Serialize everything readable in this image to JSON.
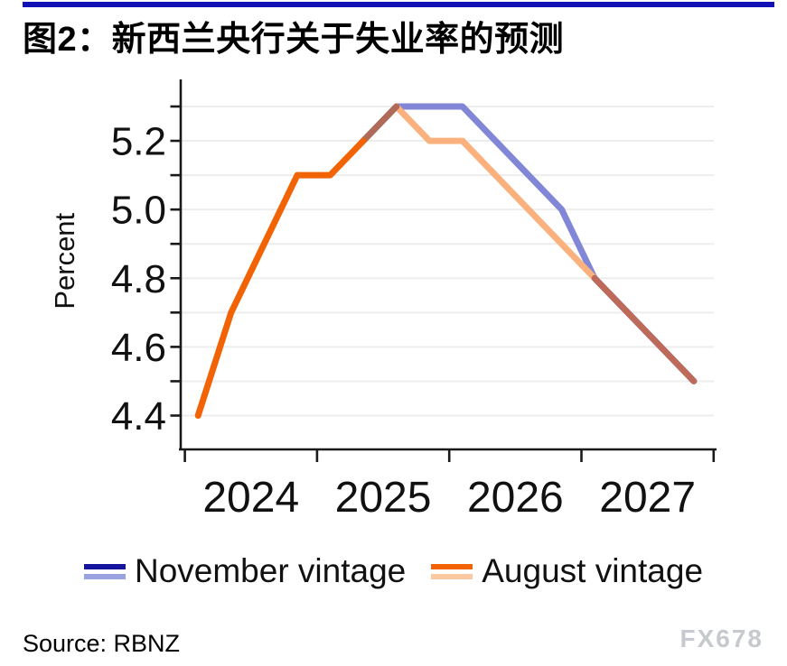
{
  "header": {
    "title": "图2：新西兰央行关于失业率的预测",
    "bar_color": "#1111b5"
  },
  "footer": {
    "source": "Source: RBNZ",
    "watermark": "FX678"
  },
  "legend": {
    "items": [
      {
        "label": "November vintage",
        "key_colors": [
          "#15149e",
          "#9aa2e2"
        ]
      },
      {
        "label": "August vintage",
        "key_colors": [
          "#f16305",
          "#fbc9a0"
        ]
      }
    ]
  },
  "chart_data": {
    "type": "line",
    "title": "图2：新西兰央行关于失业率的预测",
    "xlabel": "",
    "ylabel": "Percent",
    "grid": true,
    "legend_position": "bottom",
    "x_axis": {
      "unit": "quarter",
      "start": "2024Q1",
      "boundaries_q": [
        0,
        4,
        8,
        12,
        16
      ],
      "year_labels": [
        "2024",
        "2025",
        "2026",
        "2027"
      ]
    },
    "y_axis": {
      "min": 4.4,
      "max": 5.3,
      "tick_step": 0.1,
      "labeled_ticks": [
        {
          "value": 4.4,
          "label": "4.4"
        },
        {
          "value": 4.6,
          "label": "4.6"
        },
        {
          "value": 4.8,
          "label": "4.8"
        },
        {
          "value": 5.0,
          "label": "5.0"
        },
        {
          "value": 5.2,
          "label": "5.2"
        }
      ]
    },
    "series": [
      {
        "name": "November vintage",
        "color_actual": "#15149e",
        "color_forecast": "#8187d6",
        "quarters": [
          "2025Q2",
          "2025Q3",
          "2025Q4",
          "2026Q1",
          "2026Q2",
          "2026Q3",
          "2026Q4",
          "2027Q1",
          "2027Q2",
          "2027Q3",
          "2027Q4"
        ],
        "values": [
          5.2,
          5.3,
          5.3,
          5.3,
          5.2,
          5.1,
          5.0,
          4.8,
          4.7,
          4.6,
          4.5
        ]
      },
      {
        "name": "August vintage",
        "color_actual": "#f16305",
        "color_forecast": "#fab17d",
        "quarters": [
          "2024Q1",
          "2024Q2",
          "2024Q3",
          "2024Q4",
          "2025Q1",
          "2025Q2",
          "2025Q3",
          "2025Q4",
          "2026Q1",
          "2026Q2",
          "2026Q3",
          "2026Q4",
          "2027Q1",
          "2027Q2",
          "2027Q3",
          "2027Q4"
        ],
        "values": [
          4.4,
          4.7,
          4.9,
          5.1,
          5.1,
          5.2,
          5.3,
          5.2,
          5.2,
          5.1,
          5.0,
          4.9,
          4.8,
          4.7,
          4.6,
          4.5
        ]
      }
    ],
    "overlap_colors": {
      "rise": "#b06b58",
      "tail": "#bd6a5a"
    },
    "render_segments": [
      {
        "name": "november-forecast-line",
        "color": "#8187d6",
        "points": [
          [
            5,
            5.2
          ],
          [
            6,
            5.3
          ],
          [
            8,
            5.3
          ],
          [
            11,
            5.0
          ],
          [
            12,
            4.8
          ],
          [
            15,
            4.5
          ]
        ]
      },
      {
        "name": "august-forecast-line",
        "color": "#fab17d",
        "points": [
          [
            6,
            5.3
          ],
          [
            7,
            5.2
          ],
          [
            8,
            5.2
          ],
          [
            12,
            4.8
          ]
        ]
      },
      {
        "name": "overlap-rise-line",
        "color": "#b06b58",
        "points": [
          [
            5,
            5.2
          ],
          [
            6,
            5.3
          ]
        ]
      },
      {
        "name": "overlap-tail-line",
        "color": "#bd6a5a",
        "points": [
          [
            12,
            4.8
          ],
          [
            15,
            4.5
          ]
        ]
      },
      {
        "name": "august-actual-line",
        "color": "#f16305",
        "points": [
          [
            0,
            4.4
          ],
          [
            1,
            4.7
          ],
          [
            2,
            4.9
          ],
          [
            3,
            5.1
          ],
          [
            4,
            5.1
          ],
          [
            5,
            5.2
          ]
        ]
      }
    ]
  }
}
